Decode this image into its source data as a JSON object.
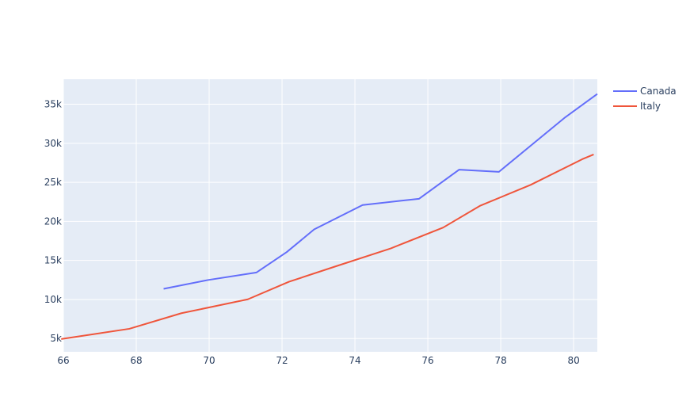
{
  "chart_data": {
    "type": "line",
    "title": "",
    "xlabel": "",
    "ylabel": "",
    "xlim": [
      66,
      80.65
    ],
    "ylim": [
      3300,
      38200
    ],
    "x_ticks": [
      66,
      68,
      70,
      72,
      74,
      76,
      78,
      80
    ],
    "x_tick_labels": [
      "66",
      "68",
      "70",
      "72",
      "74",
      "76",
      "78",
      "80"
    ],
    "y_ticks": [
      5000,
      10000,
      15000,
      20000,
      25000,
      30000,
      35000
    ],
    "y_tick_labels": [
      "5k",
      "10k",
      "15k",
      "20k",
      "25k",
      "30k",
      "35k"
    ],
    "grid": true,
    "legend_position": "top-right",
    "series": [
      {
        "name": "Canada",
        "color": "#636efa",
        "points": [
          [
            68.75,
            11367
          ],
          [
            69.96,
            12489
          ],
          [
            71.3,
            13462
          ],
          [
            72.13,
            16077
          ],
          [
            72.88,
            18971
          ],
          [
            74.21,
            22091
          ],
          [
            75.76,
            22899
          ],
          [
            76.86,
            26627
          ],
          [
            77.95,
            26343
          ],
          [
            78.63,
            28955
          ],
          [
            79.77,
            33329
          ],
          [
            80.65,
            36319
          ]
        ]
      },
      {
        "name": "Italy",
        "color": "#ef553b",
        "points": [
          [
            65.94,
            4932
          ],
          [
            67.81,
            6249
          ],
          [
            69.24,
            8244
          ],
          [
            71.06,
            10022
          ],
          [
            72.19,
            12269
          ],
          [
            73.48,
            14256
          ],
          [
            74.98,
            16537
          ],
          [
            76.42,
            19208
          ],
          [
            77.44,
            22014
          ],
          [
            78.82,
            24675
          ],
          [
            80.24,
            27968
          ],
          [
            80.55,
            28570
          ]
        ]
      }
    ]
  }
}
